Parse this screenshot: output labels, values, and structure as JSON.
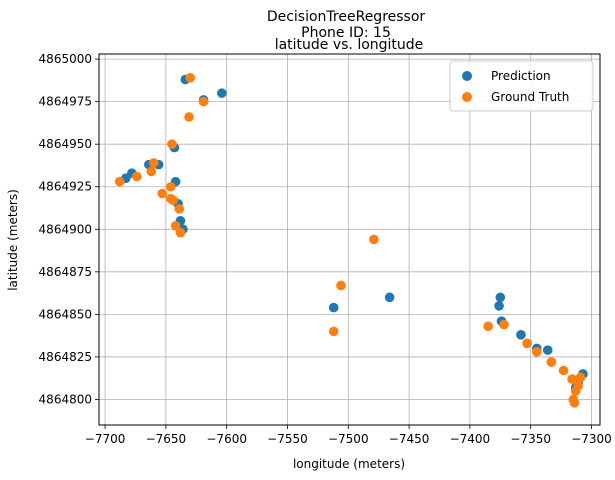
{
  "chart_data": {
    "type": "scatter",
    "title_lines": [
      "DecisionTreeRegressor",
      "Phone ID: 15"
    ],
    "subtitle": "latitude vs. longitude",
    "xlabel": "longitude (meters)",
    "ylabel": "latitude (meters)",
    "xlim": [
      -7705,
      -7293
    ],
    "ylim": [
      4864785,
      4865003
    ],
    "xticks": [
      -7700,
      -7650,
      -7600,
      -7550,
      -7500,
      -7450,
      -7400,
      -7350,
      -7300
    ],
    "xtick_labels": [
      "−7700",
      "−7650",
      "−7600",
      "−7550",
      "−7500",
      "−7450",
      "−7400",
      "−7350",
      "−7300"
    ],
    "yticks": [
      4864800,
      4864825,
      4864850,
      4864875,
      4864900,
      4864925,
      4864950,
      4864975,
      4865000
    ],
    "ytick_labels": [
      "4864800",
      "4864825",
      "4864850",
      "4864875",
      "4864900",
      "4864925",
      "4864950",
      "4864975",
      "4865000"
    ],
    "grid": true,
    "legend_position": "top-right",
    "series": [
      {
        "name": "Prediction",
        "color": "#1f77b4",
        "points": [
          [
            -7634,
            4864988
          ],
          [
            -7604,
            4864980
          ],
          [
            -7619,
            4864976
          ],
          [
            -7643,
            4864948
          ],
          [
            -7664,
            4864938
          ],
          [
            -7656,
            4864938
          ],
          [
            -7678,
            4864933
          ],
          [
            -7683,
            4864930
          ],
          [
            -7642,
            4864928
          ],
          [
            -7640,
            4864915
          ],
          [
            -7638,
            4864905
          ],
          [
            -7636,
            4864900
          ],
          [
            -7512,
            4864854
          ],
          [
            -7466,
            4864860
          ],
          [
            -7375,
            4864860
          ],
          [
            -7376,
            4864855
          ],
          [
            -7374,
            4864846
          ],
          [
            -7358,
            4864838
          ],
          [
            -7345,
            4864830
          ],
          [
            -7336,
            4864829
          ],
          [
            -7333,
            4864822
          ],
          [
            -7307,
            4864815
          ],
          [
            -7311,
            4864810
          ],
          [
            -7313,
            4864807
          ]
        ]
      },
      {
        "name": "Ground Truth",
        "color": "#ff7f0e",
        "points": [
          [
            -7630,
            4864989
          ],
          [
            -7619,
            4864975
          ],
          [
            -7631,
            4864966
          ],
          [
            -7645,
            4864950
          ],
          [
            -7660,
            4864939
          ],
          [
            -7662,
            4864934
          ],
          [
            -7674,
            4864931
          ],
          [
            -7688,
            4864928
          ],
          [
            -7646,
            4864925
          ],
          [
            -7653,
            4864921
          ],
          [
            -7646,
            4864918
          ],
          [
            -7644,
            4864917
          ],
          [
            -7639,
            4864912
          ],
          [
            -7642,
            4864902
          ],
          [
            -7638,
            4864898
          ],
          [
            -7479,
            4864894
          ],
          [
            -7506,
            4864867
          ],
          [
            -7512,
            4864840
          ],
          [
            -7385,
            4864843
          ],
          [
            -7372,
            4864844
          ],
          [
            -7353,
            4864833
          ],
          [
            -7345,
            4864828
          ],
          [
            -7333,
            4864822
          ],
          [
            -7323,
            4864817
          ],
          [
            -7316,
            4864812
          ],
          [
            -7309,
            4864813
          ],
          [
            -7311,
            4864808
          ],
          [
            -7313,
            4864805
          ],
          [
            -7315,
            4864800
          ],
          [
            -7314,
            4864798
          ]
        ]
      }
    ]
  }
}
